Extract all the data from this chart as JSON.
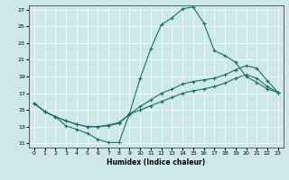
{
  "title": "",
  "xlabel": "Humidex (Indice chaleur)",
  "ylabel": "",
  "xlim": [
    -0.5,
    23.5
  ],
  "ylim": [
    10.5,
    27.5
  ],
  "xticks": [
    0,
    1,
    2,
    3,
    4,
    5,
    6,
    7,
    8,
    9,
    10,
    11,
    12,
    13,
    14,
    15,
    16,
    17,
    18,
    19,
    20,
    21,
    22,
    23
  ],
  "yticks": [
    11,
    13,
    15,
    17,
    19,
    21,
    23,
    25,
    27
  ],
  "bg_color": "#cce8e8",
  "line_color": "#1a7068",
  "grid_color": "#ffffff",
  "line1_x": [
    0,
    1,
    2,
    3,
    4,
    5,
    6,
    7,
    8,
    9,
    10,
    11,
    12,
    13,
    14,
    15,
    16,
    17,
    18,
    19,
    20,
    21,
    22,
    23
  ],
  "line1_y": [
    15.8,
    14.8,
    14.2,
    13.1,
    12.7,
    12.2,
    11.5,
    11.1,
    11.1,
    14.6,
    18.8,
    22.3,
    25.2,
    26.0,
    27.1,
    27.3,
    25.4,
    22.1,
    21.5,
    20.7,
    19.0,
    18.3,
    17.5,
    17.1
  ],
  "line2_x": [
    0,
    1,
    2,
    3,
    4,
    5,
    6,
    7,
    8,
    9,
    10,
    11,
    12,
    13,
    14,
    15,
    16,
    17,
    18,
    19,
    20,
    21,
    22,
    23
  ],
  "line2_y": [
    15.8,
    14.8,
    14.2,
    13.7,
    13.3,
    13.0,
    13.0,
    13.1,
    13.4,
    14.5,
    15.4,
    16.2,
    17.0,
    17.5,
    18.1,
    18.4,
    18.6,
    18.8,
    19.2,
    19.8,
    20.3,
    20.0,
    18.5,
    17.1
  ],
  "line3_x": [
    0,
    1,
    2,
    3,
    4,
    5,
    6,
    7,
    8,
    9,
    10,
    11,
    12,
    13,
    14,
    15,
    16,
    17,
    18,
    19,
    20,
    21,
    22,
    23
  ],
  "line3_y": [
    15.8,
    14.8,
    14.2,
    13.7,
    13.3,
    13.0,
    13.0,
    13.2,
    13.5,
    14.5,
    15.0,
    15.5,
    16.0,
    16.5,
    17.0,
    17.3,
    17.5,
    17.8,
    18.2,
    18.8,
    19.2,
    18.8,
    17.8,
    17.1
  ]
}
